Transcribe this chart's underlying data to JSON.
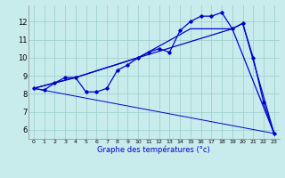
{
  "xlabel": "Graphe des températures (°c)",
  "bg_color": "#c8ecec",
  "grid_color": "#a0d0d0",
  "line_color": "#0000cc",
  "x_ticks": [
    0,
    1,
    2,
    3,
    4,
    5,
    6,
    7,
    8,
    9,
    10,
    11,
    12,
    13,
    14,
    15,
    16,
    17,
    18,
    19,
    20,
    21,
    22,
    23
  ],
  "yticks": [
    6,
    7,
    8,
    9,
    10,
    11,
    12
  ],
  "ylim": [
    5.5,
    12.9
  ],
  "xlim": [
    -0.5,
    23.5
  ],
  "curve_main": {
    "x": [
      0,
      1,
      2,
      3,
      4,
      5,
      6,
      7,
      8,
      9,
      10,
      11,
      12,
      13,
      14,
      15,
      16,
      17,
      18,
      19,
      20,
      21,
      22,
      23
    ],
    "y": [
      8.3,
      8.2,
      8.6,
      8.9,
      8.9,
      8.1,
      8.1,
      8.3,
      9.3,
      9.6,
      10.0,
      10.3,
      10.5,
      10.3,
      11.5,
      12.0,
      12.3,
      12.3,
      12.5,
      11.6,
      11.9,
      10.0,
      7.5,
      5.8
    ]
  },
  "curve_trend1": {
    "x": [
      0,
      4,
      10,
      15,
      19,
      20,
      23
    ],
    "y": [
      8.3,
      8.9,
      10.0,
      11.6,
      11.6,
      11.9,
      5.8
    ]
  },
  "curve_trend2": {
    "x": [
      0,
      4,
      10,
      19,
      23
    ],
    "y": [
      8.3,
      8.9,
      10.0,
      11.6,
      5.8
    ]
  },
  "curve_baseline": {
    "x": [
      0,
      23
    ],
    "y": [
      8.3,
      5.8
    ]
  },
  "xlabel_fontsize": 6.0,
  "xtick_fontsize": 4.5,
  "ytick_fontsize": 6.0
}
